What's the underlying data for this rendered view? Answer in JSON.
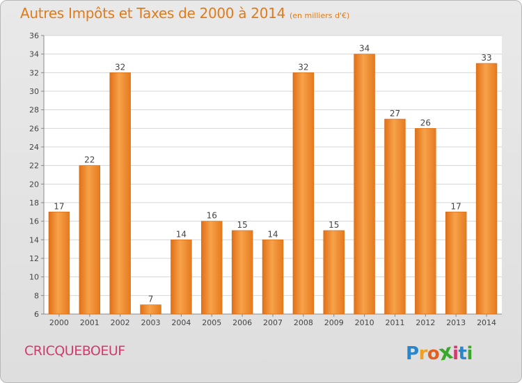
{
  "chart_data": {
    "type": "bar",
    "title": "Autres Impôts et Taxes de 2000 à 2014",
    "subtitle": "(en milliers d'€)",
    "categories": [
      "2000",
      "2001",
      "2002",
      "2003",
      "2004",
      "2005",
      "2006",
      "2007",
      "2008",
      "2009",
      "2010",
      "2011",
      "2012",
      "2013",
      "2014"
    ],
    "values": [
      17,
      22,
      32,
      7,
      14,
      16,
      15,
      14,
      32,
      15,
      34,
      27,
      26,
      17,
      33
    ],
    "ylim": [
      6,
      36
    ],
    "yticks": [
      6,
      8,
      10,
      12,
      14,
      16,
      18,
      20,
      22,
      24,
      26,
      28,
      30,
      32,
      34,
      36
    ],
    "grid": true,
    "bar_color": "#f08a2a",
    "bar_color_light": "#f9ab55",
    "xlabel": "",
    "ylabel": ""
  },
  "footer": {
    "commune": "CRICQUEBOEUF",
    "logo_letters": [
      "P",
      "r",
      "o",
      "x",
      "i",
      "t",
      "i"
    ],
    "logo_colors": [
      "#2a86c9",
      "#f0a020",
      "#e06020",
      "#3aa82a",
      "#d03a6e",
      "#2a86c9",
      "#3aa82a"
    ]
  },
  "colors": {
    "title": "#e07b1a",
    "commune": "#d03a6e"
  }
}
